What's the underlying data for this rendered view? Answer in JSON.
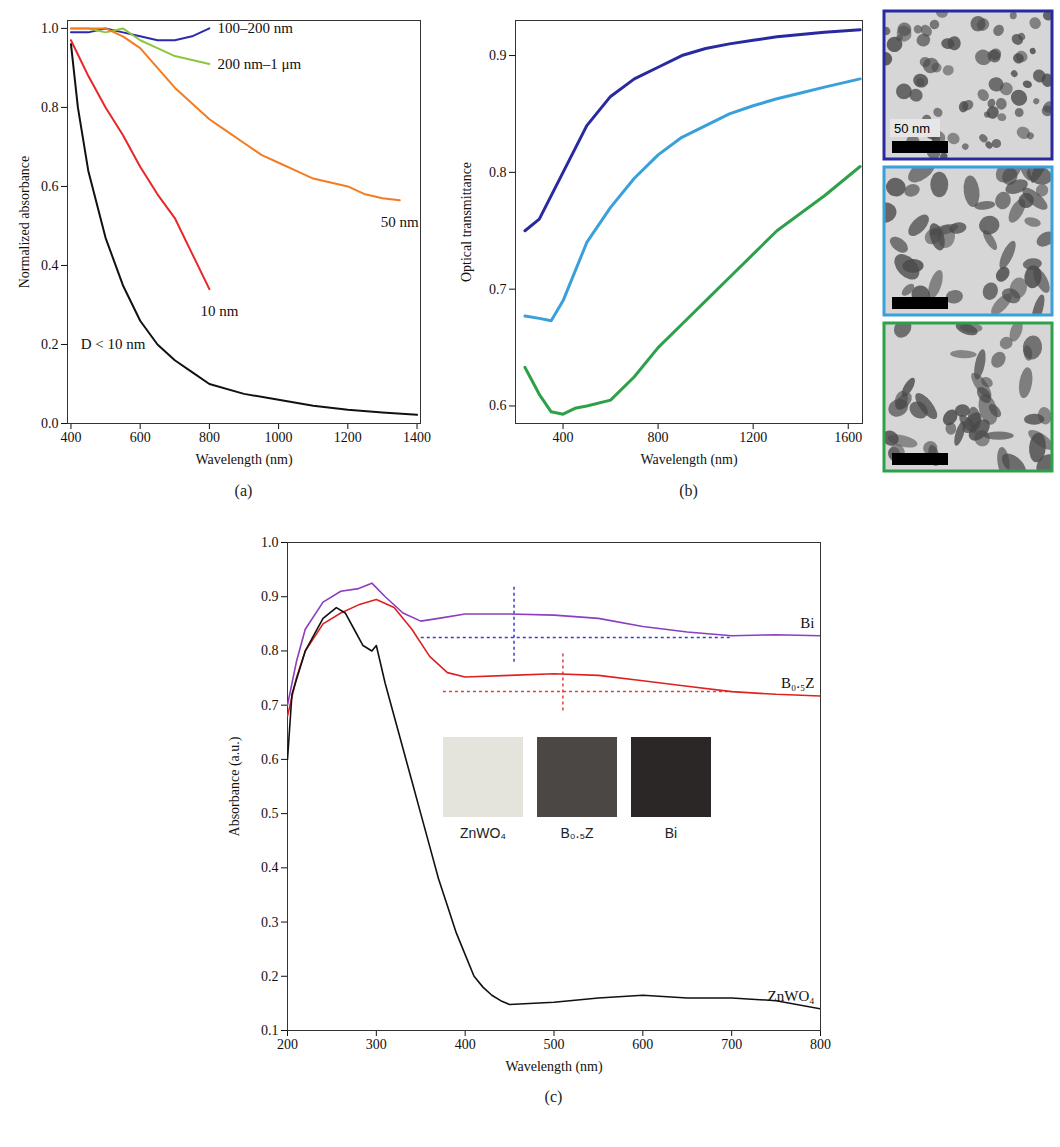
{
  "chart_data": [
    {
      "type": "line",
      "title": "(a)",
      "x_label": "Wavelength (nm)",
      "y_label": "Normalized absorbance",
      "xlim": [
        390,
        1410
      ],
      "xticks": [
        400,
        600,
        800,
        1000,
        1200,
        1400
      ],
      "ylim": [
        0,
        1.02
      ],
      "yticks": [
        {
          "value": 0,
          "label": "0.0"
        },
        0.2,
        0.4,
        0.6,
        0.8,
        {
          "value": 1,
          "label": "1.0"
        }
      ],
      "series": [
        {
          "name": "100–200 nm",
          "color": "#2b2bb0",
          "x": [
            400,
            450,
            500,
            550,
            600,
            650,
            700,
            750,
            800
          ],
          "values": [
            0.99,
            0.99,
            1.0,
            0.99,
            0.98,
            0.97,
            0.97,
            0.98,
            1.0
          ]
        },
        {
          "name": "200 nm–1 μm",
          "color": "#8dc63f",
          "x": [
            400,
            450,
            500,
            550,
            600,
            650,
            700,
            750,
            800
          ],
          "values": [
            1.0,
            1.0,
            0.99,
            1.0,
            0.97,
            0.95,
            0.93,
            0.92,
            0.91
          ]
        },
        {
          "name": "50 nm",
          "color": "#f47b20",
          "x": [
            400,
            500,
            550,
            600,
            650,
            700,
            750,
            800,
            850,
            900,
            950,
            1000,
            1050,
            1100,
            1150,
            1200,
            1250,
            1300,
            1350
          ],
          "values": [
            1.0,
            1.0,
            0.98,
            0.95,
            0.9,
            0.85,
            0.81,
            0.77,
            0.74,
            0.71,
            0.68,
            0.66,
            0.64,
            0.62,
            0.61,
            0.6,
            0.58,
            0.57,
            0.565
          ]
        },
        {
          "name": "10 nm",
          "color": "#e8262b",
          "x": [
            400,
            450,
            500,
            550,
            600,
            650,
            700,
            750,
            800
          ],
          "values": [
            0.97,
            0.88,
            0.8,
            0.73,
            0.65,
            0.58,
            0.52,
            0.43,
            0.34
          ]
        },
        {
          "name": "D < 10 nm",
          "color": "#111111",
          "x": [
            400,
            420,
            450,
            500,
            550,
            600,
            650,
            700,
            750,
            800,
            900,
            1000,
            1100,
            1200,
            1300,
            1400
          ],
          "values": [
            0.96,
            0.8,
            0.64,
            0.47,
            0.35,
            0.26,
            0.2,
            0.16,
            0.13,
            0.1,
            0.075,
            0.06,
            0.045,
            0.035,
            0.028,
            0.022
          ]
        }
      ]
    },
    {
      "type": "line",
      "title": "(b)",
      "x_label": "Wavelength (nm)",
      "y_label": "Optical transmittance",
      "xlim": [
        200,
        1660
      ],
      "xticks": [
        400,
        800,
        1200,
        1600
      ],
      "ylim": [
        0.585,
        0.93
      ],
      "yticks": [
        0.6,
        0.7,
        0.8,
        0.9
      ],
      "scale_bar": "50 nm",
      "series": [
        {
          "color": "#2a2aa0",
          "x": [
            240,
            300,
            400,
            500,
            600,
            700,
            800,
            900,
            1000,
            1100,
            1200,
            1300,
            1400,
            1500,
            1650
          ],
          "values": [
            0.75,
            0.76,
            0.8,
            0.84,
            0.865,
            0.88,
            0.89,
            0.9,
            0.906,
            0.91,
            0.913,
            0.916,
            0.918,
            0.92,
            0.922
          ]
        },
        {
          "color": "#3aa0dc",
          "x": [
            240,
            300,
            350,
            400,
            500,
            600,
            700,
            800,
            900,
            1000,
            1100,
            1200,
            1300,
            1400,
            1500,
            1650
          ],
          "values": [
            0.677,
            0.675,
            0.673,
            0.69,
            0.74,
            0.77,
            0.795,
            0.815,
            0.83,
            0.84,
            0.85,
            0.857,
            0.863,
            0.868,
            0.873,
            0.88
          ]
        },
        {
          "color": "#2ea04a",
          "x": [
            240,
            300,
            350,
            400,
            450,
            500,
            600,
            700,
            800,
            900,
            1000,
            1100,
            1200,
            1300,
            1400,
            1500,
            1650
          ],
          "values": [
            0.633,
            0.61,
            0.595,
            0.593,
            0.598,
            0.6,
            0.605,
            0.625,
            0.65,
            0.67,
            0.69,
            0.71,
            0.73,
            0.75,
            0.765,
            0.78,
            0.805
          ]
        }
      ]
    },
    {
      "type": "line",
      "title": "(c)",
      "x_label": "Wavelength (nm)",
      "y_label": "Absorbance (a.u.)",
      "xlim": [
        200,
        800
      ],
      "xticks": [
        200,
        300,
        400,
        500,
        600,
        700,
        800
      ],
      "ylim": [
        0.1,
        1.0
      ],
      "yticks": [
        0.1,
        0.2,
        0.3,
        0.4,
        0.5,
        0.6,
        0.7,
        0.8,
        0.9,
        {
          "value": 1,
          "label": "1.0"
        }
      ],
      "series": [
        {
          "name": "Bi",
          "color": "#8a3fbf",
          "x": [
            200,
            210,
            220,
            240,
            260,
            280,
            295,
            310,
            330,
            350,
            370,
            400,
            450,
            500,
            550,
            600,
            650,
            700,
            750,
            800
          ],
          "values": [
            0.7,
            0.78,
            0.84,
            0.89,
            0.91,
            0.915,
            0.925,
            0.9,
            0.87,
            0.855,
            0.86,
            0.868,
            0.868,
            0.866,
            0.86,
            0.845,
            0.835,
            0.828,
            0.83,
            0.828
          ]
        },
        {
          "name": "B₀.₅Z",
          "color": "#e02020",
          "x": [
            200,
            210,
            220,
            240,
            260,
            280,
            300,
            320,
            340,
            360,
            380,
            400,
            450,
            500,
            550,
            600,
            650,
            700,
            750,
            800
          ],
          "values": [
            0.68,
            0.75,
            0.8,
            0.85,
            0.87,
            0.885,
            0.895,
            0.88,
            0.84,
            0.79,
            0.76,
            0.752,
            0.755,
            0.758,
            0.755,
            0.745,
            0.735,
            0.725,
            0.72,
            0.717
          ]
        },
        {
          "name": "ZnWO₄",
          "color": "#111111",
          "x": [
            200,
            205,
            220,
            240,
            255,
            265,
            275,
            285,
            295,
            300,
            310,
            320,
            330,
            340,
            350,
            360,
            370,
            380,
            390,
            400,
            410,
            420,
            430,
            440,
            450,
            500,
            550,
            600,
            650,
            700,
            750,
            800
          ],
          "values": [
            0.6,
            0.72,
            0.8,
            0.86,
            0.88,
            0.87,
            0.84,
            0.81,
            0.8,
            0.81,
            0.74,
            0.68,
            0.62,
            0.56,
            0.5,
            0.44,
            0.38,
            0.33,
            0.28,
            0.24,
            0.2,
            0.18,
            0.165,
            0.155,
            0.148,
            0.152,
            0.16,
            0.165,
            0.16,
            0.16,
            0.155,
            0.14
          ]
        }
      ],
      "guides": [
        {
          "color": "#3b3bd0",
          "line_style": "dotted",
          "x": [
            350,
            700
          ],
          "y": [
            0.825,
            0.825
          ]
        },
        {
          "color": "#3b3bd0",
          "line_style": "dotted",
          "x": [
            455,
            455
          ],
          "y": [
            0.78,
            0.92
          ]
        },
        {
          "color": "#e04040",
          "line_style": "dotted",
          "x": [
            375,
            700
          ],
          "y": [
            0.725,
            0.725
          ]
        },
        {
          "color": "#e04040",
          "line_style": "dotted",
          "x": [
            510,
            510
          ],
          "y": [
            0.69,
            0.8
          ]
        }
      ],
      "insets": [
        {
          "label": "ZnWO₄",
          "color": "#e4e4dc"
        },
        {
          "label": "B₀.₅Z",
          "color": "#4a4744"
        },
        {
          "label": "Bi",
          "color": "#2a2726"
        }
      ]
    }
  ]
}
